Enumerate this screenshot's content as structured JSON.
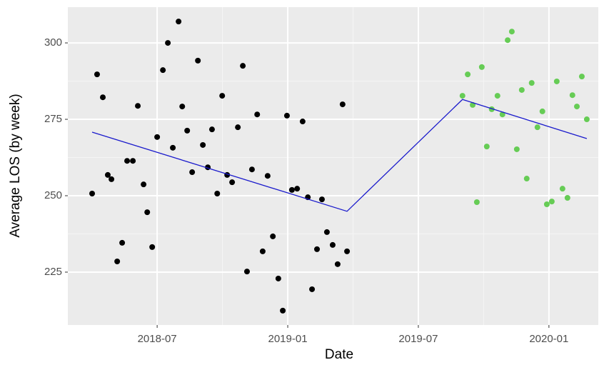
{
  "chart_data": {
    "type": "scatter",
    "x_label": "Date",
    "y_label": "Average LOS (by week)",
    "xlim": [
      2018.158,
      2020.189
    ],
    "ylim": [
      207.7,
      311.7
    ],
    "xticks": [
      {
        "value": 2018.5,
        "label": "2018-07"
      },
      {
        "value": 2019.0,
        "label": "2019-01"
      },
      {
        "value": 2019.5,
        "label": "2019-07"
      },
      {
        "value": 2020.0,
        "label": "2020-01"
      }
    ],
    "yticks": [
      225,
      250,
      275,
      300
    ],
    "grid": true,
    "series": [
      {
        "type": "scatter",
        "color": "#000000",
        "x": [
          2018.251,
          2018.27,
          2018.292,
          2018.311,
          2018.325,
          2018.347,
          2018.366,
          2018.385,
          2018.407,
          2018.426,
          2018.448,
          2018.462,
          2018.481,
          2018.5,
          2018.522,
          2018.541,
          2018.56,
          2018.582,
          2018.596,
          2018.615,
          2018.634,
          2018.656,
          2018.675,
          2018.694,
          2018.71,
          2018.73,
          2018.749,
          2018.768,
          2018.787,
          2018.809,
          2018.828,
          2018.844,
          2018.863,
          2018.883,
          2018.904,
          2018.923,
          2018.943,
          2018.964,
          2018.981,
          2018.997,
          2019.016,
          2019.036,
          2019.057,
          2019.077,
          2019.093,
          2019.112,
          2019.131,
          2019.15,
          2019.172,
          2019.191,
          2019.21,
          2019.227
        ],
        "values": [
          250.7,
          289.7,
          282.2,
          256.8,
          255.4,
          228.5,
          234.6,
          261.4,
          261.4,
          279.4,
          253.7,
          244.6,
          233.2,
          269.2,
          291.1,
          300.0,
          265.7,
          307.0,
          279.2,
          271.3,
          257.7,
          294.2,
          266.6,
          259.3,
          271.7,
          250.7,
          282.7,
          256.8,
          254.4,
          272.4,
          292.5,
          225.2,
          258.6,
          276.6,
          231.8,
          256.5,
          236.7,
          222.9,
          212.4,
          276.2,
          251.9,
          252.3,
          274.3,
          249.5,
          219.4,
          232.5,
          248.8,
          238.1,
          233.9,
          227.6,
          279.9,
          231.8
        ]
      },
      {
        "type": "scatter",
        "color": "#66cc55",
        "x": [
          2019.669,
          2019.689,
          2019.708,
          2019.724,
          2019.743,
          2019.762,
          2019.781,
          2019.803,
          2019.822,
          2019.842,
          2019.858,
          2019.877,
          2019.896,
          2019.915,
          2019.934,
          2019.956,
          2019.975,
          2019.992,
          2020.011,
          2020.03,
          2020.052,
          2020.071,
          2020.09,
          2020.107,
          2020.126,
          2020.145
        ],
        "values": [
          282.7,
          289.7,
          279.7,
          247.9,
          292.1,
          266.1,
          278.3,
          282.7,
          276.6,
          300.9,
          303.7,
          265.2,
          284.6,
          255.6,
          286.9,
          272.4,
          277.6,
          247.2,
          248.1,
          287.4,
          252.3,
          249.3,
          282.9,
          279.2,
          289.0,
          275.0
        ]
      },
      {
        "type": "line",
        "color": "#1a1acc",
        "x": [
          2018.251,
          2019.227,
          2019.669,
          2020.145
        ],
        "values": [
          270.8,
          244.9,
          281.5,
          268.7
        ]
      }
    ]
  }
}
